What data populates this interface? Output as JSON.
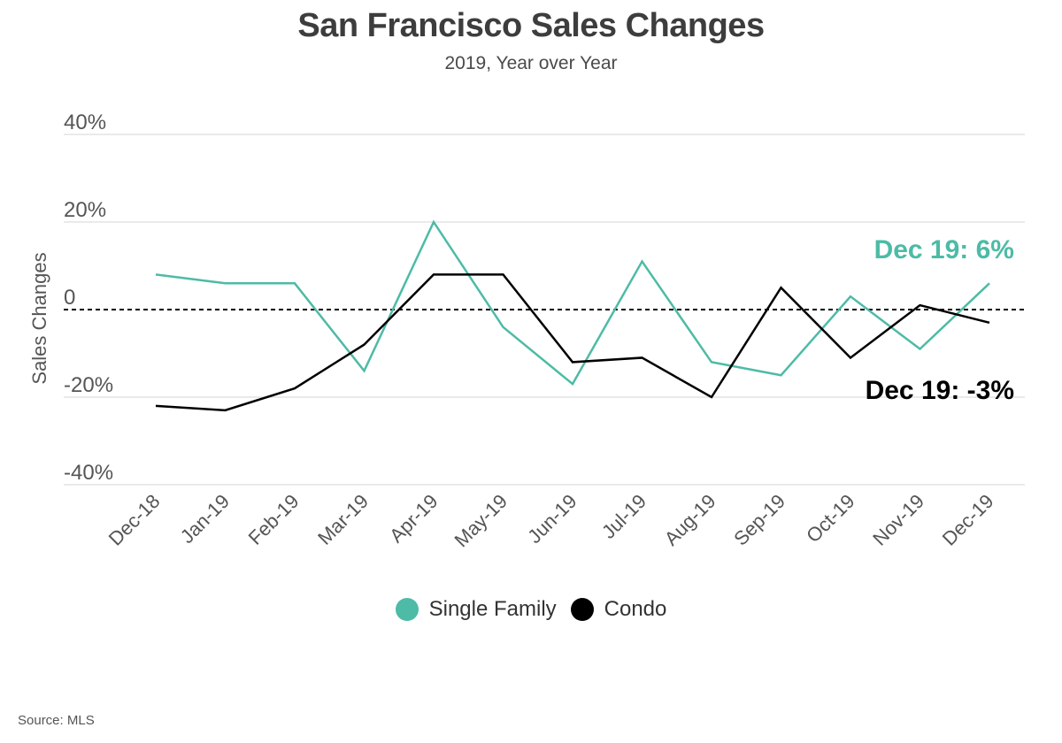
{
  "title": "San Francisco Sales Changes",
  "subtitle": "2019, Year over Year",
  "source": "Source:  MLS",
  "colors": {
    "single_family": "#4dbba6",
    "condo": "#000000",
    "grid": "#dddddd",
    "axis_text": "#555555"
  },
  "chart_data": {
    "type": "line",
    "title": "San Francisco Sales Changes",
    "subtitle": "2019, Year over Year",
    "xlabel": "",
    "ylabel": "Sales Changes",
    "ylim": [
      -40,
      40
    ],
    "yticks": [
      40,
      20,
      0,
      -20,
      -40
    ],
    "ytick_labels": [
      "40%",
      "20%",
      "0",
      "-20%",
      "-40%"
    ],
    "zero_line_dashed": true,
    "grid": "horizontal",
    "legend_position": "bottom",
    "categories": [
      "Dec-18",
      "Jan-19",
      "Feb-19",
      "Mar-19",
      "Apr-19",
      "May-19",
      "Jun-19",
      "Jul-19",
      "Aug-19",
      "Sep-19",
      "Oct-19",
      "Nov-19",
      "Dec-19"
    ],
    "series": [
      {
        "name": "Single Family",
        "values": [
          8,
          6,
          6,
          -14,
          20,
          -4,
          -17,
          11,
          -12,
          -15,
          3,
          -9,
          6
        ]
      },
      {
        "name": "Condo",
        "values": [
          -22,
          -23,
          -18,
          -8,
          8,
          8,
          -12,
          -11,
          -20,
          5,
          -11,
          1,
          -3
        ]
      }
    ],
    "annotations": [
      {
        "text": "Dec 19: 6%",
        "series": "Single Family"
      },
      {
        "text": "Dec 19: -3%",
        "series": "Condo"
      }
    ]
  }
}
